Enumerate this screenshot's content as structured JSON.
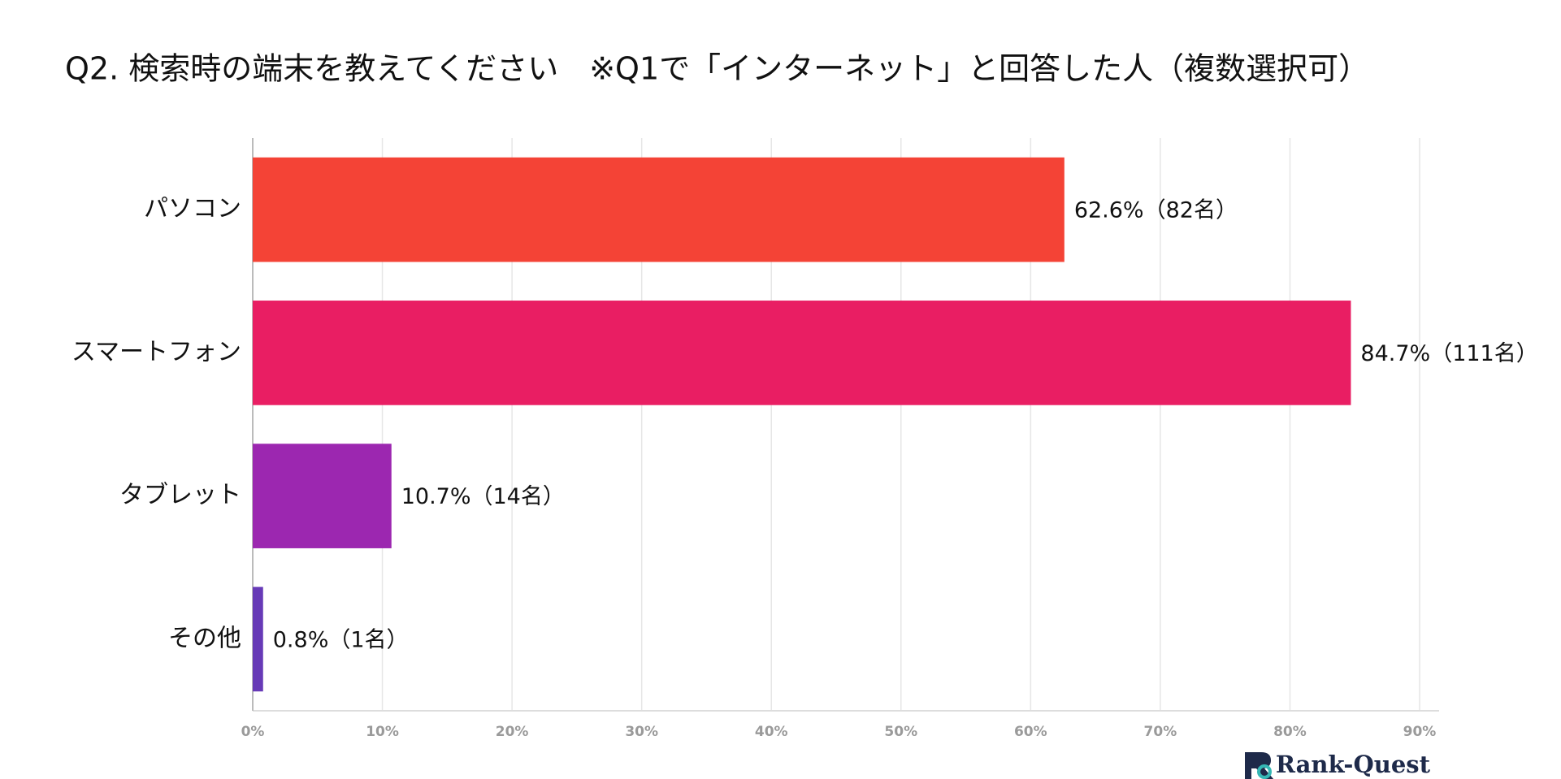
{
  "chart_data": {
    "type": "barh",
    "title": "Q2. 検索時の端末を教えてください　※Q1で「インターネット」と回答した人（複数選択可）",
    "categories": [
      "パソコン",
      "スマートフォン",
      "タブレット",
      "その他"
    ],
    "values": [
      62.6,
      84.7,
      10.7,
      0.8
    ],
    "value_labels": [
      "62.6%（82名）",
      "84.7%（111名）",
      "10.7%（14名）",
      "0.8%（1名）"
    ],
    "colors": [
      "#f44336",
      "#e91e63",
      "#9c27b0",
      "#673ab7"
    ],
    "xlim": [
      0,
      90
    ],
    "xticks": [
      {
        "value": 0,
        "label": "0%"
      },
      {
        "value": 10,
        "label": "10%"
      },
      {
        "value": 20,
        "label": "20%"
      },
      {
        "value": 30,
        "label": "30%"
      },
      {
        "value": 40,
        "label": "40%"
      },
      {
        "value": 50,
        "label": "50%"
      },
      {
        "value": 60,
        "label": "60%"
      },
      {
        "value": 70,
        "label": "70%"
      },
      {
        "value": 80,
        "label": "80%"
      },
      {
        "value": 90,
        "label": "90%"
      }
    ],
    "grid": true
  },
  "logo": "Rank-Quest"
}
